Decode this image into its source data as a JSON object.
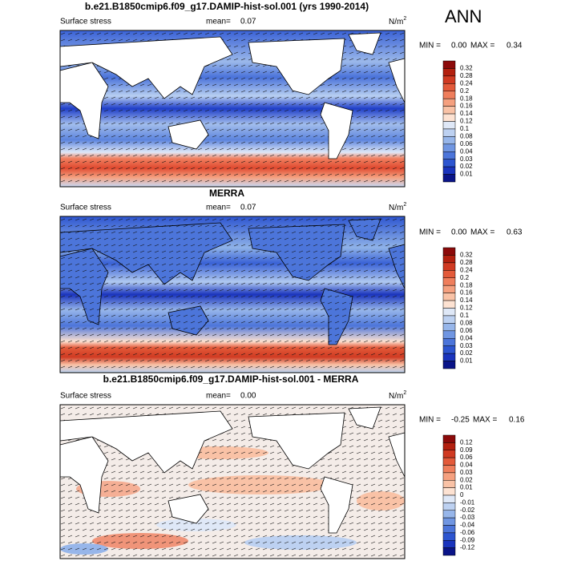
{
  "label": "ANN",
  "panels": [
    {
      "title": "b.e21.B1850cmip6.f09_g17.DAMIP-hist-sol.001 (yrs 1990-2014)",
      "variable": "Surface stress",
      "mean_label": "mean=",
      "mean": "0.07",
      "units": "N/m",
      "units_sup": "2",
      "min_label": "MIN =",
      "min": "0.00",
      "max_label": "MAX =",
      "max": "0.34",
      "colorbar": {
        "labels": [
          "0.32",
          "0.28",
          "0.24",
          "0.2",
          "0.18",
          "0.16",
          "0.14",
          "0.12",
          "0.1",
          "0.08",
          "0.06",
          "0.04",
          "0.03",
          "0.02",
          "0.01"
        ],
        "colors": [
          "#8c0a0a",
          "#b3200f",
          "#d03a22",
          "#e35a3a",
          "#ef7e5c",
          "#f5a07f",
          "#f9c2a6",
          "#fde2d2",
          "#dfe8f7",
          "#bdd1f1",
          "#97b6ea",
          "#7096e2",
          "#4c75da",
          "#2d55d0",
          "#1a34bd",
          "#0a1488"
        ]
      }
    },
    {
      "title": "MERRA",
      "variable": "Surface stress",
      "mean_label": "mean=",
      "mean": "0.07",
      "units": "N/m",
      "units_sup": "2",
      "min_label": "MIN =",
      "min": "0.00",
      "max_label": "MAX =",
      "max": "0.63",
      "colorbar": {
        "labels": [
          "0.32",
          "0.28",
          "0.24",
          "0.2",
          "0.18",
          "0.16",
          "0.14",
          "0.12",
          "0.1",
          "0.08",
          "0.06",
          "0.04",
          "0.03",
          "0.02",
          "0.01"
        ],
        "colors": [
          "#8c0a0a",
          "#b3200f",
          "#d03a22",
          "#e35a3a",
          "#ef7e5c",
          "#f5a07f",
          "#f9c2a6",
          "#fde2d2",
          "#dfe8f7",
          "#bdd1f1",
          "#97b6ea",
          "#7096e2",
          "#4c75da",
          "#2d55d0",
          "#1a34bd",
          "#0a1488"
        ]
      }
    },
    {
      "title": "b.e21.B1850cmip6.f09_g17.DAMIP-hist-sol.001 - MERRA",
      "variable": "Surface stress",
      "mean_label": "mean=",
      "mean": "0.00",
      "units": "N/m",
      "units_sup": "2",
      "min_label": "MIN =",
      "min": "-0.25",
      "max_label": "MAX =",
      "max": "0.16",
      "colorbar": {
        "labels": [
          "0.12",
          "0.09",
          "0.06",
          "0.04",
          "0.03",
          "0.02",
          "0.01",
          "0",
          "-0.01",
          "-0.02",
          "-0.03",
          "-0.04",
          "-0.06",
          "-0.09",
          "-0.12"
        ],
        "colors": [
          "#8c0a0a",
          "#b3200f",
          "#d03a22",
          "#e35a3a",
          "#ef7e5c",
          "#f5a07f",
          "#f9c2a6",
          "#fde2d2",
          "#dfe8f7",
          "#bdd1f1",
          "#97b6ea",
          "#7096e2",
          "#4c75da",
          "#2d55d0",
          "#1a34bd",
          "#0a1488"
        ]
      }
    }
  ]
}
